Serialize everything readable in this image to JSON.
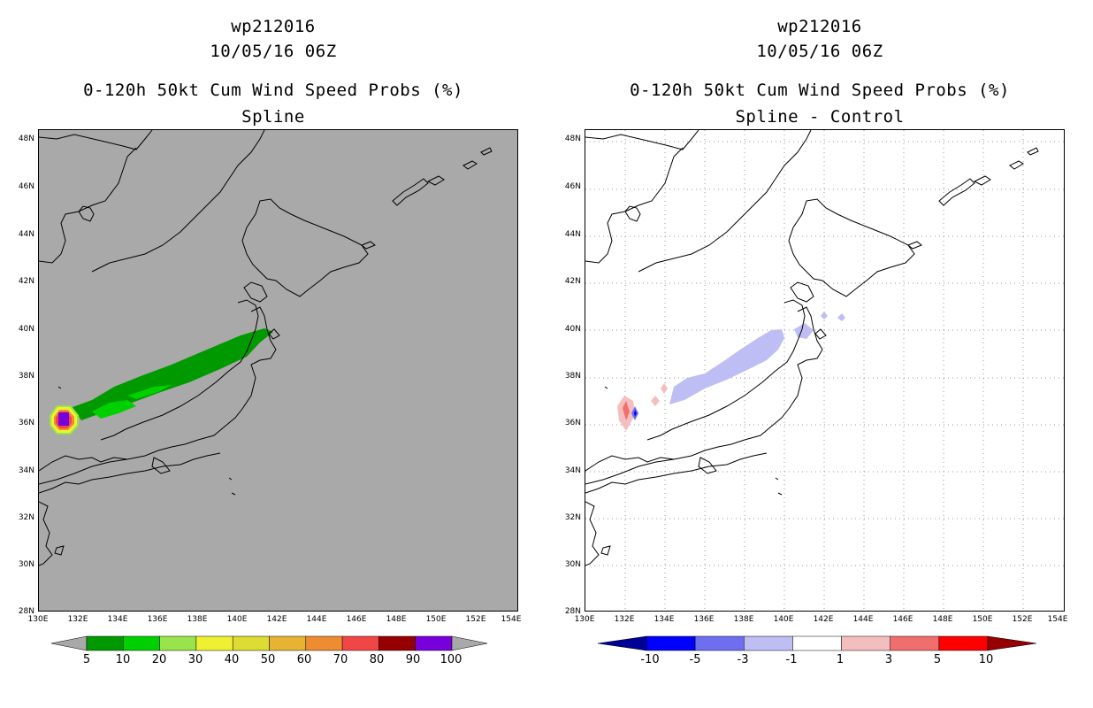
{
  "left_panel": {
    "title_line1": "wp212016",
    "title_line2": "10/05/16 06Z",
    "title_line3": "0-120h 50kt Cum Wind Speed Probs (%)",
    "title_line4": "Spline",
    "background_color": "#a9a9a9"
  },
  "right_panel": {
    "title_line1": "wp212016",
    "title_line2": "10/05/16 06Z",
    "title_line3": "0-120h 50kt Cum Wind Speed Probs (%)",
    "title_line4": "Spline - Control",
    "background_color": "#ffffff"
  },
  "lat_labels": [
    "48N",
    "46N",
    "44N",
    "42N",
    "40N",
    "38N",
    "36N",
    "34N",
    "32N",
    "30N",
    "28N"
  ],
  "lon_labels": [
    "130E",
    "132E",
    "134E",
    "136E",
    "138E",
    "140E",
    "142E",
    "144E",
    "146E",
    "148E",
    "150E",
    "152E",
    "154E"
  ],
  "left_colorbar": {
    "labels": [
      "5",
      "10",
      "20",
      "30",
      "40",
      "50",
      "60",
      "70",
      "80",
      "90",
      "100"
    ],
    "colors": [
      "#009a00",
      "#00d000",
      "#99e44a",
      "#f0f032",
      "#dcdc32",
      "#e6b432",
      "#ee8c32",
      "#f04646",
      "#960000",
      "#7800dc"
    ]
  },
  "right_colorbar": {
    "labels": [
      "-10",
      "-5",
      "-3",
      "-1",
      "1",
      "3",
      "5",
      "10"
    ],
    "colors": [
      "#000096",
      "#0000ff",
      "#6e6ef0",
      "#bebef5",
      "#ffffff",
      "#f5bebe",
      "#f06e6e",
      "#ff0000",
      "#960000"
    ]
  },
  "icons": {
    "coastline": "coastline-icon",
    "probability-contours": "wind-probability-contour-icon"
  }
}
